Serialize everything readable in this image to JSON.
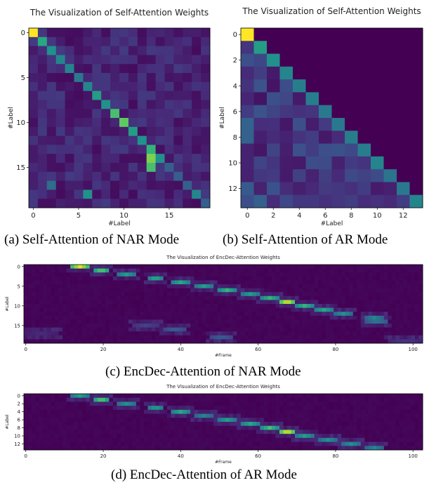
{
  "palette": {
    "stops": [
      "#440154",
      "#472d7b",
      "#3b528b",
      "#2c728e",
      "#21918c",
      "#28ae80",
      "#5ec962",
      "#addc30",
      "#fde725"
    ]
  },
  "captions": {
    "a": "(a) Self-Attention of NAR Mode",
    "b": "(b) Self-Attention of AR Mode",
    "c": "(c) EncDec-Attention of NAR Mode",
    "d": "(d) EncDec-Attention of AR Mode"
  },
  "chart_data": [
    {
      "id": "a",
      "type": "heatmap",
      "title": "The Visualization of Self-Attention Weights",
      "xlabel": "#Label",
      "ylabel": "#Label",
      "rows": 20,
      "cols": 20,
      "xticks": [
        0,
        5,
        10,
        15
      ],
      "yticks": [
        0,
        5,
        10,
        15
      ],
      "peaks": [
        {
          "row": 0,
          "col": 0,
          "value": 1.0
        },
        {
          "row": 1,
          "col": 1,
          "value": 0.6
        },
        {
          "row": 2,
          "col": 2,
          "value": 0.5
        },
        {
          "row": 3,
          "col": 3,
          "value": 0.45
        },
        {
          "row": 4,
          "col": 4,
          "value": 0.45
        },
        {
          "row": 5,
          "col": 5,
          "value": 0.4
        },
        {
          "row": 6,
          "col": 6,
          "value": 0.45
        },
        {
          "row": 7,
          "col": 7,
          "value": 0.55
        },
        {
          "row": 8,
          "col": 8,
          "value": 0.5
        },
        {
          "row": 9,
          "col": 9,
          "value": 0.7
        },
        {
          "row": 10,
          "col": 10,
          "value": 0.75
        },
        {
          "row": 11,
          "col": 11,
          "value": 0.55
        },
        {
          "row": 12,
          "col": 12,
          "value": 0.5
        },
        {
          "row": 13,
          "col": 13,
          "value": 0.65
        },
        {
          "row": 14,
          "col": 13,
          "value": 0.8
        },
        {
          "row": 15,
          "col": 13,
          "value": 0.7
        },
        {
          "row": 14,
          "col": 14,
          "value": 0.5
        },
        {
          "row": 18,
          "col": 6,
          "value": 0.5
        },
        {
          "row": 17,
          "col": 2,
          "value": 0.35
        },
        {
          "row": 18,
          "col": 18,
          "value": 0.45
        }
      ]
    },
    {
      "id": "b",
      "type": "heatmap",
      "title": "The Visualization of Self-Attention Weights",
      "xlabel": "#Label",
      "ylabel": "#Label",
      "rows": 14,
      "cols": 14,
      "xticks": [
        0,
        2,
        4,
        6,
        8,
        10,
        12
      ],
      "yticks": [
        0,
        2,
        4,
        6,
        8,
        10,
        12
      ],
      "diagonal": [
        1.0,
        0.55,
        0.5,
        0.45,
        0.42,
        0.42,
        0.4,
        0.4,
        0.42,
        0.42,
        0.45,
        0.38,
        0.4,
        0.45
      ]
    },
    {
      "id": "c",
      "type": "heatmap",
      "title": "The Visualization of EncDec-Attention Weights",
      "xlabel": "#Frame",
      "ylabel": "#Label",
      "rows": 20,
      "cols": 103,
      "xticks": [
        0,
        20,
        40,
        60,
        80,
        100
      ],
      "yticks": [
        0,
        5,
        10,
        15
      ],
      "path": [
        {
          "row": 0,
          "from": 12,
          "to": 16,
          "value": 0.95
        },
        {
          "row": 1,
          "from": 18,
          "to": 21,
          "value": 0.75
        },
        {
          "row": 2,
          "from": 24,
          "to": 28,
          "value": 0.55
        },
        {
          "row": 3,
          "from": 32,
          "to": 35,
          "value": 0.6
        },
        {
          "row": 4,
          "from": 38,
          "to": 42,
          "value": 0.6
        },
        {
          "row": 5,
          "from": 44,
          "to": 48,
          "value": 0.55
        },
        {
          "row": 6,
          "from": 50,
          "to": 54,
          "value": 0.65
        },
        {
          "row": 7,
          "from": 56,
          "to": 60,
          "value": 0.55
        },
        {
          "row": 8,
          "from": 61,
          "to": 65,
          "value": 0.65
        },
        {
          "row": 9,
          "from": 66,
          "to": 69,
          "value": 0.95
        },
        {
          "row": 10,
          "from": 70,
          "to": 74,
          "value": 0.65
        },
        {
          "row": 11,
          "from": 75,
          "to": 79,
          "value": 0.6
        },
        {
          "row": 12,
          "from": 80,
          "to": 84,
          "value": 0.5
        },
        {
          "row": 13,
          "from": 88,
          "to": 92,
          "value": 0.45
        },
        {
          "row": 14,
          "from": 88,
          "to": 93,
          "value": 0.4
        },
        {
          "row": 15,
          "from": 28,
          "to": 34,
          "value": 0.2
        },
        {
          "row": 16,
          "from": 36,
          "to": 41,
          "value": 0.3
        },
        {
          "row": 17,
          "from": 0,
          "to": 8,
          "value": 0.12
        },
        {
          "row": 18,
          "from": 48,
          "to": 53,
          "value": 0.3
        },
        {
          "row": 19,
          "from": 94,
          "to": 102,
          "value": 0.15
        }
      ]
    },
    {
      "id": "d",
      "type": "heatmap",
      "title": "The Visualization of EncDec-Attention Weights",
      "xlabel": "#Frame",
      "ylabel": "#Label",
      "rows": 14,
      "cols": 103,
      "xticks": [
        0,
        20,
        40,
        60,
        80,
        100
      ],
      "yticks": [
        0,
        2,
        4,
        6,
        8,
        10,
        12
      ],
      "path": [
        {
          "row": 0,
          "from": 12,
          "to": 16,
          "value": 0.55
        },
        {
          "row": 1,
          "from": 18,
          "to": 21,
          "value": 0.75
        },
        {
          "row": 2,
          "from": 24,
          "to": 28,
          "value": 0.5
        },
        {
          "row": 3,
          "from": 32,
          "to": 35,
          "value": 0.55
        },
        {
          "row": 4,
          "from": 38,
          "to": 42,
          "value": 0.6
        },
        {
          "row": 5,
          "from": 44,
          "to": 48,
          "value": 0.45
        },
        {
          "row": 6,
          "from": 50,
          "to": 54,
          "value": 0.55
        },
        {
          "row": 7,
          "from": 56,
          "to": 60,
          "value": 0.6
        },
        {
          "row": 8,
          "from": 61,
          "to": 65,
          "value": 0.7
        },
        {
          "row": 9,
          "from": 66,
          "to": 69,
          "value": 0.95
        },
        {
          "row": 10,
          "from": 70,
          "to": 74,
          "value": 0.55
        },
        {
          "row": 11,
          "from": 76,
          "to": 80,
          "value": 0.5
        },
        {
          "row": 12,
          "from": 82,
          "to": 86,
          "value": 0.5
        },
        {
          "row": 13,
          "from": 88,
          "to": 92,
          "value": 0.45
        }
      ]
    }
  ]
}
